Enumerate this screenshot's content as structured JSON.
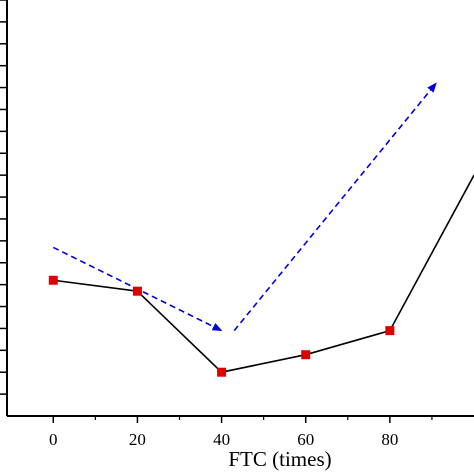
{
  "chart_data": {
    "type": "line",
    "xlabel": "FTC (times)",
    "ylabel": "",
    "x_ticks": [
      "0",
      "20",
      "40",
      "60",
      "80"
    ],
    "xlim": [
      -11,
      100
    ],
    "ylim": [
      0,
      19
    ],
    "grid": false,
    "series": [
      {
        "x": [
          0,
          20,
          40,
          60,
          80,
          100
        ],
        "y": [
          6.2,
          5.7,
          2.0,
          2.8,
          3.9,
          11.0
        ],
        "line_color": "#000000",
        "marker_color": "#e00000"
      }
    ],
    "annotations": [
      {
        "type": "arrow",
        "from": [
          0,
          7.7
        ],
        "to": [
          40,
          3.9
        ],
        "color": "#0000dd",
        "style": "dashed"
      },
      {
        "type": "arrow",
        "from": [
          43,
          3.9
        ],
        "to": [
          91,
          15.2
        ],
        "color": "#0000dd",
        "style": "dashed"
      }
    ]
  }
}
